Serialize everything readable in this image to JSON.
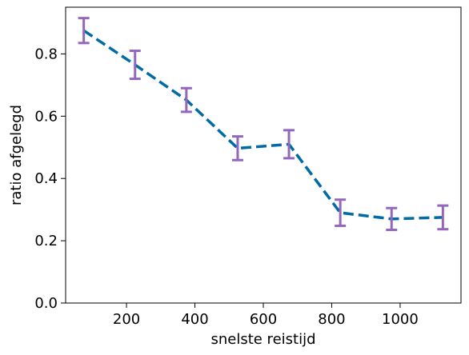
{
  "chart_data": {
    "type": "line",
    "title": "",
    "xlabel": "snelste reistijd",
    "ylabel": "ratio afgelegd",
    "xlim": [
      22,
      1178
    ],
    "ylim": [
      0,
      0.95
    ],
    "x_ticks": [
      200,
      400,
      600,
      800,
      1000
    ],
    "x_tick_labels": [
      "200",
      "400",
      "600",
      "800",
      "1000"
    ],
    "y_ticks": [
      0.0,
      0.2,
      0.4,
      0.6,
      0.8
    ],
    "y_tick_labels": [
      "0.0",
      "0.2",
      "0.4",
      "0.6",
      "0.8"
    ],
    "grid": false,
    "series": [
      {
        "name": "ratio afgelegd",
        "line_style": "dashed",
        "line_color": "#006ba4",
        "errorbar_color": "#9467bd",
        "x": [
          75,
          225,
          375,
          525,
          675,
          825,
          975,
          1125
        ],
        "y": [
          0.875,
          0.765,
          0.652,
          0.497,
          0.51,
          0.29,
          0.27,
          0.275
        ],
        "err": [
          0.04,
          0.045,
          0.038,
          0.038,
          0.045,
          0.042,
          0.035,
          0.038
        ]
      }
    ]
  }
}
